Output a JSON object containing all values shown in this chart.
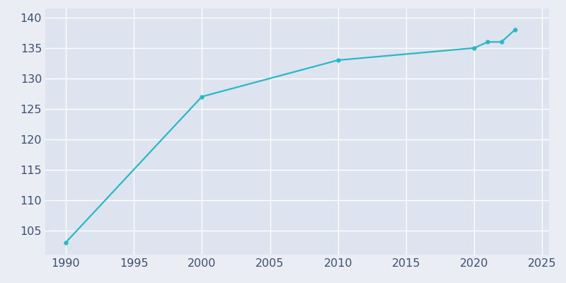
{
  "years": [
    1990,
    2000,
    2010,
    2020,
    2021,
    2022,
    2023
  ],
  "population": [
    103,
    127,
    133,
    135,
    136,
    136,
    138
  ],
  "line_color": "#29b8c4",
  "marker": "o",
  "marker_size": 3.5,
  "line_width": 1.6,
  "bg_color": "#eaeef4",
  "plot_bg_color": "#dde4ef",
  "xlim": [
    1988.5,
    2025.5
  ],
  "ylim": [
    101,
    141.5
  ],
  "xticks": [
    1990,
    1995,
    2000,
    2005,
    2010,
    2015,
    2020,
    2025
  ],
  "yticks": [
    105,
    110,
    115,
    120,
    125,
    130,
    135,
    140
  ],
  "grid_color": "#ffffff",
  "tick_color": "#3d4f72",
  "tick_fontsize": 11.5
}
